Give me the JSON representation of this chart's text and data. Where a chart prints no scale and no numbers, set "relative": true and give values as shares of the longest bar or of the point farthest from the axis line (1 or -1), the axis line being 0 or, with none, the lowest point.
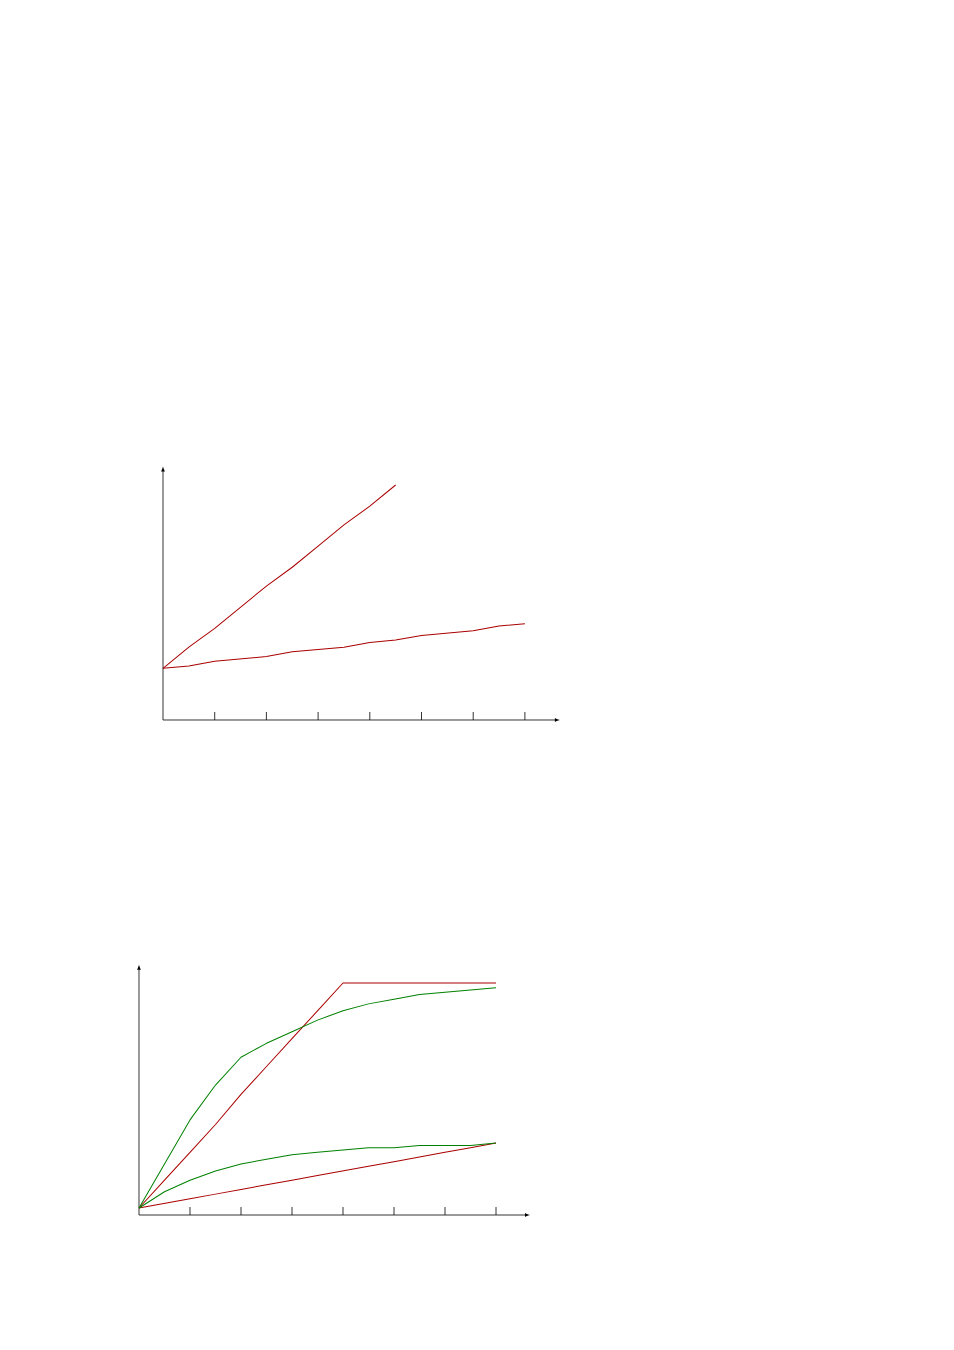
{
  "chart_data": [
    {
      "type": "line",
      "relative": true,
      "categories": [
        null,
        null,
        null,
        null,
        null,
        null,
        null,
        null,
        null,
        null,
        null,
        null,
        null,
        null,
        null
      ],
      "series": [
        {
          "color": "#aa0000",
          "values": [
            0.22,
            0.31,
            0.39,
            0.48,
            0.57,
            0.65,
            0.74,
            0.83,
            0.91,
            1.0,
            null,
            null,
            null,
            null,
            null
          ]
        },
        {
          "color": "#aa0000",
          "values": [
            0.22,
            0.23,
            0.25,
            0.26,
            0.27,
            0.29,
            0.3,
            0.31,
            0.33,
            0.34,
            0.36,
            0.37,
            0.38,
            0.4,
            0.41
          ]
        }
      ]
    },
    {
      "type": "line",
      "relative": true,
      "categories": [
        null,
        null,
        null,
        null,
        null,
        null,
        null,
        null,
        null,
        null,
        null,
        null,
        null,
        null,
        null
      ],
      "series": [
        {
          "color": "#aa0000",
          "values": [
            0.03,
            0.15,
            0.27,
            0.39,
            0.52,
            0.64,
            0.76,
            0.88,
            1.0,
            1.0,
            1.0,
            1.0,
            1.0,
            1.0,
            1.0
          ]
        },
        {
          "color": "#aa0000",
          "values": [
            0.03,
            0.05,
            0.07,
            0.09,
            0.11,
            0.13,
            0.15,
            0.17,
            0.19,
            0.21,
            0.23,
            0.25,
            0.27,
            0.29,
            0.31
          ]
        },
        {
          "color": "#008000",
          "values": [
            0.03,
            0.22,
            0.41,
            0.56,
            0.68,
            0.74,
            0.79,
            0.84,
            0.88,
            0.91,
            0.93,
            0.95,
            0.96,
            0.97,
            0.98
          ]
        },
        {
          "color": "#008000",
          "values": [
            0.03,
            0.1,
            0.15,
            0.19,
            0.22,
            0.24,
            0.26,
            0.27,
            0.28,
            0.29,
            0.29,
            0.3,
            0.3,
            0.3,
            0.31
          ]
        }
      ]
    }
  ]
}
